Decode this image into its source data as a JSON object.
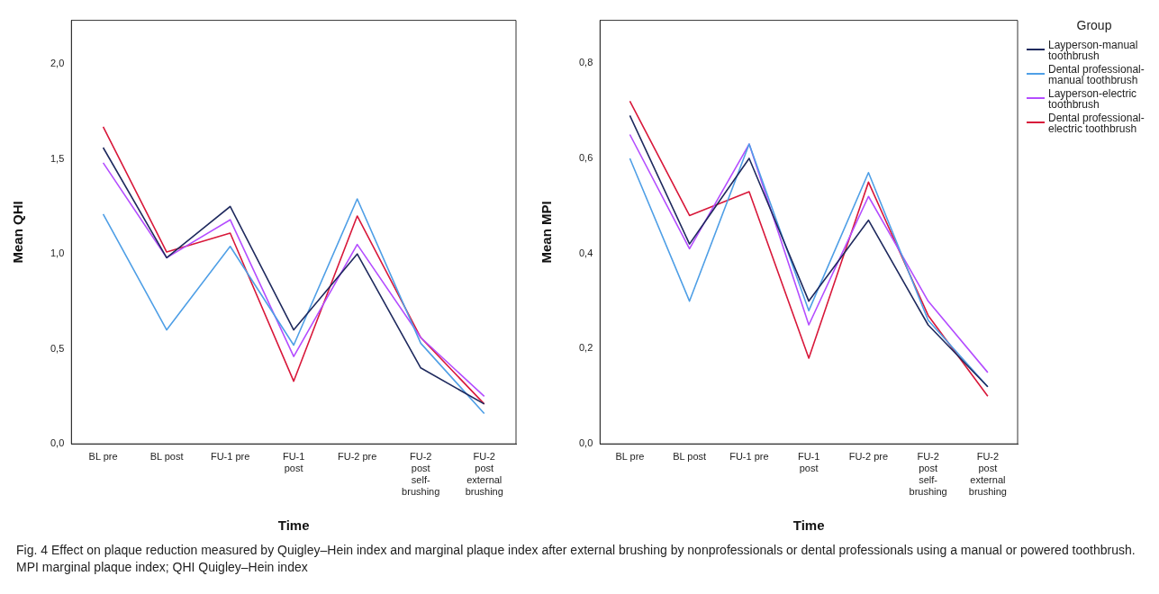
{
  "chart_data": [
    {
      "type": "line",
      "xlabel": "Time",
      "ylabel": "Mean QHI",
      "categories": [
        "BL pre",
        "BL post",
        "FU-1 pre",
        "FU-1 post",
        "FU-2 pre",
        "FU-2 post self-brushing",
        "FU-2 post external brushing"
      ],
      "series": [
        {
          "color": "#1f2a5e",
          "values": [
            1.56,
            0.98,
            1.25,
            0.6,
            1.0,
            0.4,
            0.21
          ]
        },
        {
          "color": "#4f9fe6",
          "values": [
            1.21,
            0.6,
            1.04,
            0.52,
            1.29,
            0.53,
            0.16
          ]
        },
        {
          "color": "#b44dff",
          "values": [
            1.48,
            0.98,
            1.18,
            0.46,
            1.05,
            0.56,
            0.25
          ]
        },
        {
          "color": "#d8183a",
          "values": [
            1.67,
            1.01,
            1.11,
            0.33,
            1.2,
            0.56,
            0.21
          ]
        }
      ],
      "ylim": [
        0,
        2.23
      ],
      "yticks": [
        {
          "value": 0,
          "label": "0,0"
        },
        {
          "value": 0.5,
          "label": "0,5"
        },
        {
          "value": 1,
          "label": "1,0"
        },
        {
          "value": 1.5,
          "label": "1,5"
        },
        {
          "value": 2,
          "label": "2,0"
        }
      ],
      "grid": false,
      "legend": false,
      "marker": "none",
      "line_style": "solid",
      "annotations": [
        "Fig. 4 Effect on plaque reduction measured by Quigley–Hein index and marginal plaque index after external brushing by nonprofessionals or dental professionals using a manual or powered toothbrush. MPI marginal plaque index; QHI Quigley–Hein index"
      ]
    },
    {
      "type": "line",
      "xlabel": "Time",
      "ylabel": "Mean MPI",
      "legend_title": "Group",
      "categories": [
        "BL pre",
        "BL post",
        "FU-1 pre",
        "FU-1 post",
        "FU-2 pre",
        "FU-2 post self-brushing",
        "FU-2 post external brushing"
      ],
      "series": [
        {
          "name": "Layperson-manual toothbrush",
          "color": "#1f2a5e",
          "values": [
            0.69,
            0.42,
            0.6,
            0.3,
            0.47,
            0.25,
            0.12
          ]
        },
        {
          "name": "Dental professional-manual toothbrush",
          "color": "#4f9fe6",
          "values": [
            0.6,
            0.3,
            0.63,
            0.28,
            0.57,
            0.26,
            0.12
          ]
        },
        {
          "name": "Layperson-electric toothbrush",
          "color": "#b44dff",
          "values": [
            0.65,
            0.41,
            0.63,
            0.25,
            0.52,
            0.3,
            0.15
          ]
        },
        {
          "name": "Dental professional-electric toothbrush",
          "color": "#d8183a",
          "values": [
            0.72,
            0.48,
            0.53,
            0.18,
            0.55,
            0.27,
            0.1
          ]
        }
      ],
      "ylim": [
        0,
        0.89
      ],
      "yticks": [
        {
          "value": 0,
          "label": "0,0"
        },
        {
          "value": 0.2,
          "label": "0,2"
        },
        {
          "value": 0.4,
          "label": "0,4"
        },
        {
          "value": 0.6,
          "label": "0,6"
        },
        {
          "value": 0.8,
          "label": "0,8"
        }
      ],
      "grid": false,
      "legend": "right",
      "marker": "none",
      "line_style": "solid"
    }
  ]
}
